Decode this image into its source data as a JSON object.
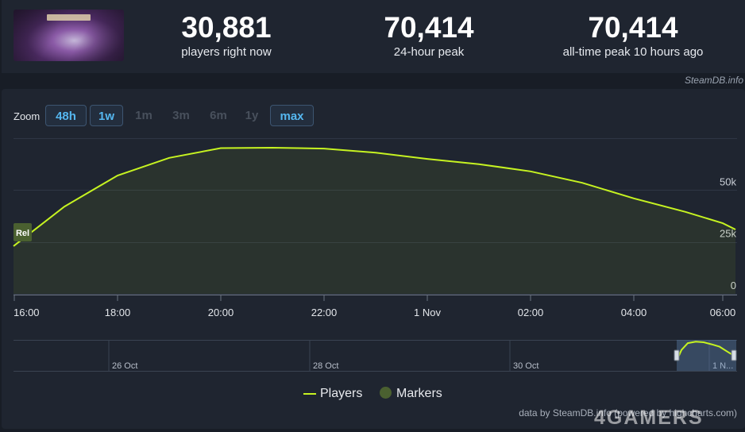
{
  "stats": [
    {
      "value": "30,881",
      "label": "players right now"
    },
    {
      "value": "70,414",
      "label": "24-hour peak"
    },
    {
      "value": "70,414",
      "label": "all-time peak 10 hours ago"
    }
  ],
  "credit": "SteamDB.info",
  "zoom": {
    "label": "Zoom",
    "buttons": [
      {
        "label": "48h",
        "active": true
      },
      {
        "label": "1w",
        "active": true
      },
      {
        "label": "1m",
        "active": false
      },
      {
        "label": "3m",
        "active": false
      },
      {
        "label": "6m",
        "active": false
      },
      {
        "label": "1y",
        "active": false
      },
      {
        "label": "max",
        "active": true
      }
    ]
  },
  "chart_data": {
    "type": "area",
    "series": [
      {
        "name": "Players",
        "color": "#c6f321",
        "x": [
          "16:00",
          "17:00",
          "18:00",
          "19:00",
          "20:00",
          "21:00",
          "22:00",
          "23:00",
          "1 Nov 00:00",
          "01:00",
          "02:00",
          "03:00",
          "04:00",
          "05:00",
          "06:00",
          "06:30"
        ],
        "values": [
          23000,
          42000,
          57000,
          65500,
          70200,
          70400,
          70000,
          68000,
          65000,
          62500,
          59000,
          53500,
          46000,
          39500,
          34000,
          31000
        ]
      }
    ],
    "marker": {
      "label": "Rel",
      "x": "16:00"
    },
    "xticks": [
      "16:00",
      "18:00",
      "20:00",
      "22:00",
      "1 Nov",
      "02:00",
      "04:00",
      "06:00"
    ],
    "yticks": [
      "0",
      "25k",
      "50k"
    ],
    "ylim": [
      0,
      75000
    ],
    "grid": true,
    "legend": [
      {
        "name": "Players",
        "color": "#c6f321",
        "symbol": "line"
      },
      {
        "name": "Markers",
        "color": "#4a6030",
        "symbol": "circle"
      }
    ],
    "navigator": {
      "ticks": [
        "26 Oct",
        "28 Oct",
        "30 Oct",
        "1 N..."
      ]
    }
  },
  "footer": "data by SteamDB.info (powered by highcharts.com)",
  "watermark": "4GAMERS"
}
